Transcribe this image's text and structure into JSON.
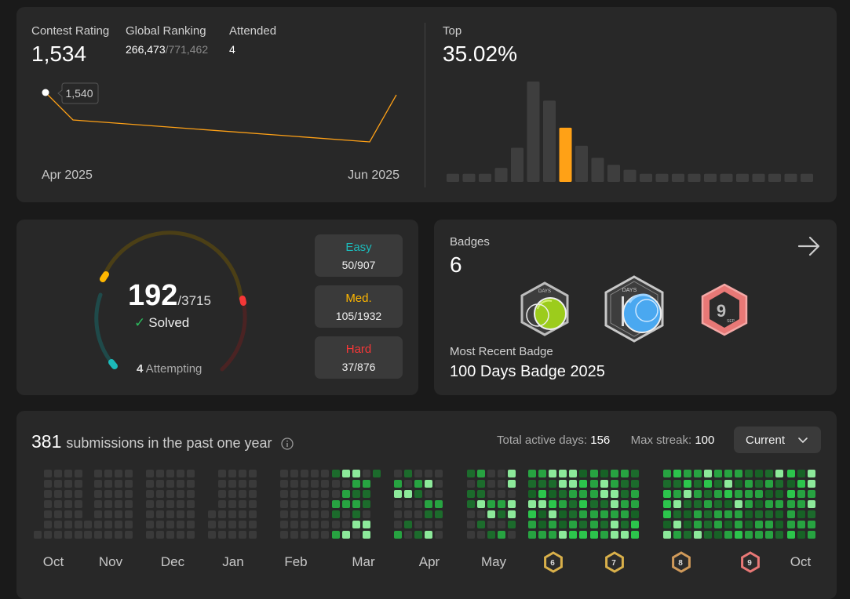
{
  "contest": {
    "rating_label": "Contest Rating",
    "rating_value": "1,534",
    "ranking_label": "Global Ranking",
    "ranking_value": "266,473",
    "ranking_total": "/771,462",
    "attended_label": "Attended",
    "attended_value": "4",
    "tooltip": "1,540",
    "axis_start": "Apr 2025",
    "axis_end": "Jun 2025",
    "top_label": "Top",
    "top_value": "35.02%",
    "line_color": "#ffa116",
    "histogram": [
      0.08,
      0.08,
      0.08,
      0.14,
      0.34,
      1.0,
      0.81,
      0.54,
      0.36,
      0.24,
      0.17,
      0.12,
      0.08,
      0.08,
      0.08,
      0.08,
      0.08,
      0.08,
      0.08,
      0.08,
      0.08,
      0.08,
      0.08
    ],
    "histogram_highlight": 7
  },
  "problems": {
    "solved": "192",
    "total": "/3715",
    "solved_label": "Solved",
    "attempting_count": "4",
    "attempting_label": " Attempting",
    "easy": {
      "label": "Easy",
      "value": "50/907",
      "color": "#1cbaba"
    },
    "medium": {
      "label": "Med.",
      "value": "105/1932",
      "color": "#ffb700"
    },
    "hard": {
      "label": "Hard",
      "value": "37/876",
      "color": "#f63737"
    }
  },
  "badges": {
    "label": "Badges",
    "count": "6",
    "recent_label": "Most Recent Badge",
    "recent_name": "100 Days Badge 2025",
    "badge1_text": "DAYS",
    "badge2_text": "DAYS",
    "badge3_day": "9",
    "badge3_month": "SEP"
  },
  "submissions": {
    "count": "381",
    "title": "submissions in the past one year",
    "active_label": "Total active days:",
    "active_value": "156",
    "streak_label": "Max streak:",
    "streak_value": "100",
    "dropdown_label": "Current",
    "months": [
      "Oct",
      "Nov",
      "Dec",
      "Jan",
      "Feb",
      "Mar",
      "Apr",
      "May",
      "Oct"
    ],
    "month_badges": [
      "6",
      "7",
      "8",
      "9"
    ]
  }
}
